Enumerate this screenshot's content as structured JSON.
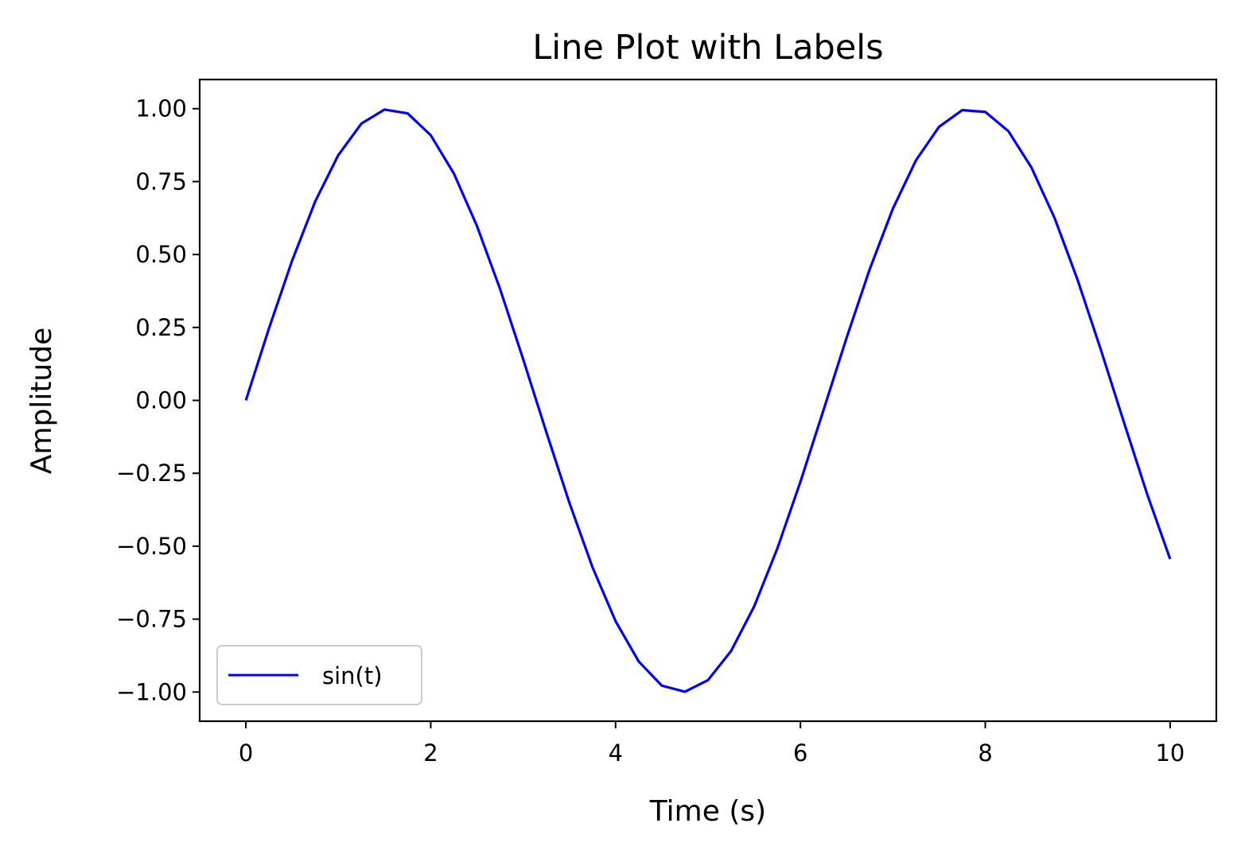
{
  "chart_data": {
    "type": "line",
    "title": "Line Plot with Labels",
    "xlabel": "Time (s)",
    "ylabel": "Amplitude",
    "xlim": [
      -0.5,
      10.5
    ],
    "ylim": [
      -1.1,
      1.1
    ],
    "xticks": [
      0,
      2,
      4,
      6,
      8,
      10
    ],
    "xtick_labels": [
      "0",
      "2",
      "4",
      "6",
      "8",
      "10"
    ],
    "yticks": [
      1.0,
      0.75,
      0.5,
      0.25,
      0.0,
      -0.25,
      -0.5,
      -0.75,
      -1.0
    ],
    "ytick_labels": [
      "1.00",
      "0.75",
      "0.50",
      "0.25",
      "0.00",
      "−0.25",
      "−0.50",
      "−0.75",
      "−1.00"
    ],
    "grid": false,
    "legend": {
      "placement": "lower-left"
    },
    "series": [
      {
        "name": "sin(t)",
        "color": "#0000ff",
        "x": [
          0.0,
          0.25,
          0.5,
          0.75,
          1.0,
          1.25,
          1.5,
          1.75,
          2.0,
          2.25,
          2.5,
          2.75,
          3.0,
          3.25,
          3.5,
          3.75,
          4.0,
          4.25,
          4.5,
          4.75,
          5.0,
          5.25,
          5.5,
          5.75,
          6.0,
          6.25,
          6.5,
          6.75,
          7.0,
          7.25,
          7.5,
          7.75,
          8.0,
          8.25,
          8.5,
          8.75,
          9.0,
          9.25,
          9.5,
          9.75,
          10.0
        ],
        "y": [
          0.0,
          0.247,
          0.479,
          0.682,
          0.841,
          0.949,
          0.997,
          0.984,
          0.909,
          0.778,
          0.598,
          0.382,
          0.141,
          -0.108,
          -0.351,
          -0.572,
          -0.757,
          -0.895,
          -0.978,
          -0.999,
          -0.959,
          -0.859,
          -0.706,
          -0.508,
          -0.279,
          -0.033,
          0.215,
          0.45,
          0.657,
          0.823,
          0.938,
          0.995,
          0.989,
          0.923,
          0.798,
          0.625,
          0.412,
          0.174,
          -0.075,
          -0.32,
          -0.544
        ]
      }
    ]
  }
}
